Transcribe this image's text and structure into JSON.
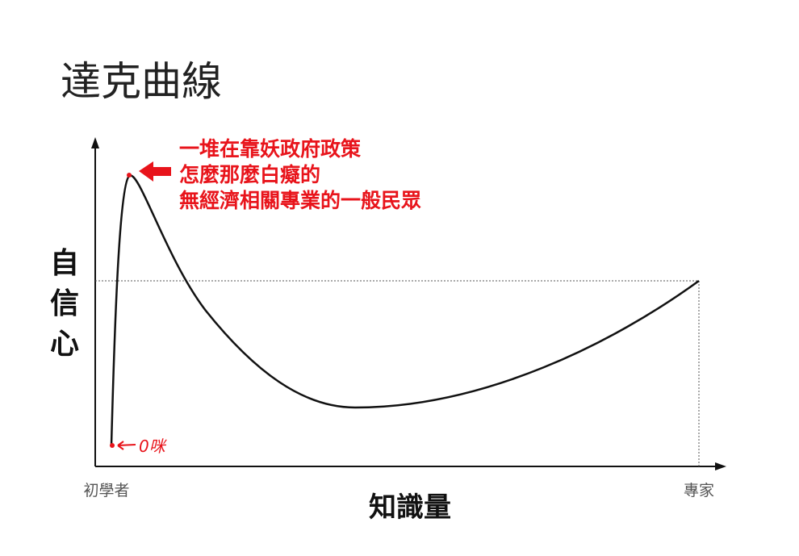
{
  "title": "達克曲線",
  "y_axis_label": "自信心",
  "x_axis_label": "知識量",
  "x_start_label": "初學者",
  "x_end_label": "專家",
  "annotation": {
    "lines": [
      "一堆在靠妖政府政策",
      "怎麼那麼白癡的",
      "無經濟相關專業的一般民眾"
    ]
  },
  "start_note": "0咪"
}
